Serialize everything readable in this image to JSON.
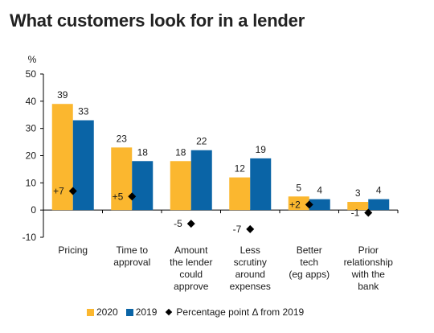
{
  "title": "What customers look for in a lender",
  "colors": {
    "s2020": "#fbb72f",
    "s2019": "#0a64a6",
    "marker": "#000000"
  },
  "chart_data": {
    "type": "bar",
    "title": "What customers look for in a lender",
    "ylabel": "%",
    "ylim": [
      -10,
      50
    ],
    "yticks": [
      -10,
      0,
      10,
      20,
      30,
      40,
      50
    ],
    "categories": [
      [
        "Pricing"
      ],
      [
        "Time to",
        "approval"
      ],
      [
        "Amount",
        "the lender",
        "could",
        "approve"
      ],
      [
        "Less",
        "scrutiny",
        "around",
        "expenses"
      ],
      [
        "Better",
        "tech",
        "(eg apps)"
      ],
      [
        "Prior",
        "relationship",
        "with the",
        "bank"
      ]
    ],
    "series": [
      {
        "name": "2020",
        "values": [
          39,
          23,
          18,
          12,
          5,
          3
        ]
      },
      {
        "name": "2019",
        "values": [
          33,
          18,
          22,
          19,
          4,
          4
        ]
      }
    ],
    "change": {
      "name": "Percentage point Δ from 2019",
      "values": [
        7,
        5,
        -5,
        -7,
        2,
        -1
      ],
      "labels": [
        "+7",
        "+5",
        "-5",
        "-7",
        "+2",
        "-1"
      ]
    },
    "legend": "bottom"
  }
}
